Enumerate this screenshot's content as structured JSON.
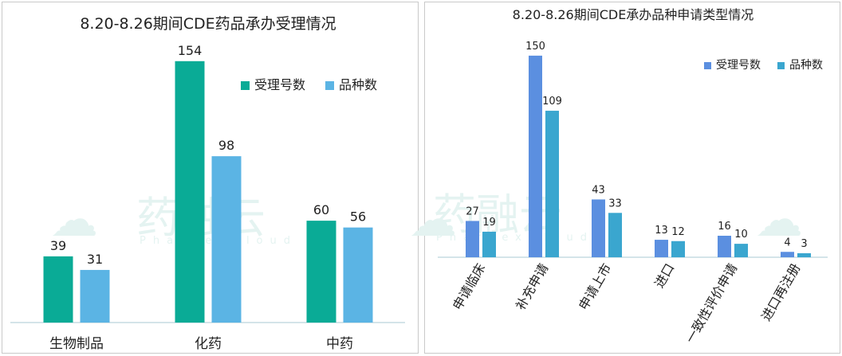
{
  "chart_data": [
    {
      "type": "bar",
      "title": "8.20-8.26期间CDE药品承办受理情况",
      "categories": [
        "生物制品",
        "化药",
        "中药"
      ],
      "series": [
        {
          "name": "受理号数",
          "values": [
            39,
            154,
            60
          ],
          "color": "#0aab96"
        },
        {
          "name": "品种数",
          "values": [
            31,
            98,
            56
          ],
          "color": "#5bb4e4"
        }
      ],
      "ylim": [
        0,
        160
      ],
      "grid": false,
      "legend": "top-right"
    },
    {
      "type": "bar",
      "title": "8.20-8.26期间CDE承办品种申请类型情况",
      "categories": [
        "申请临床",
        "补充申请",
        "申请上市",
        "进口",
        "一致性评价申请",
        "进口再注册"
      ],
      "series": [
        {
          "name": "受理号数",
          "values": [
            27,
            150,
            43,
            13,
            16,
            4
          ],
          "color": "#5b8fe0"
        },
        {
          "name": "品种数",
          "values": [
            19,
            109,
            33,
            12,
            10,
            3
          ],
          "color": "#3aa6cf"
        }
      ],
      "ylim": [
        0,
        160
      ],
      "grid": false,
      "legend": "top-right"
    }
  ],
  "watermark": {
    "text": "药融云",
    "subtext": "PharnexCloud"
  }
}
